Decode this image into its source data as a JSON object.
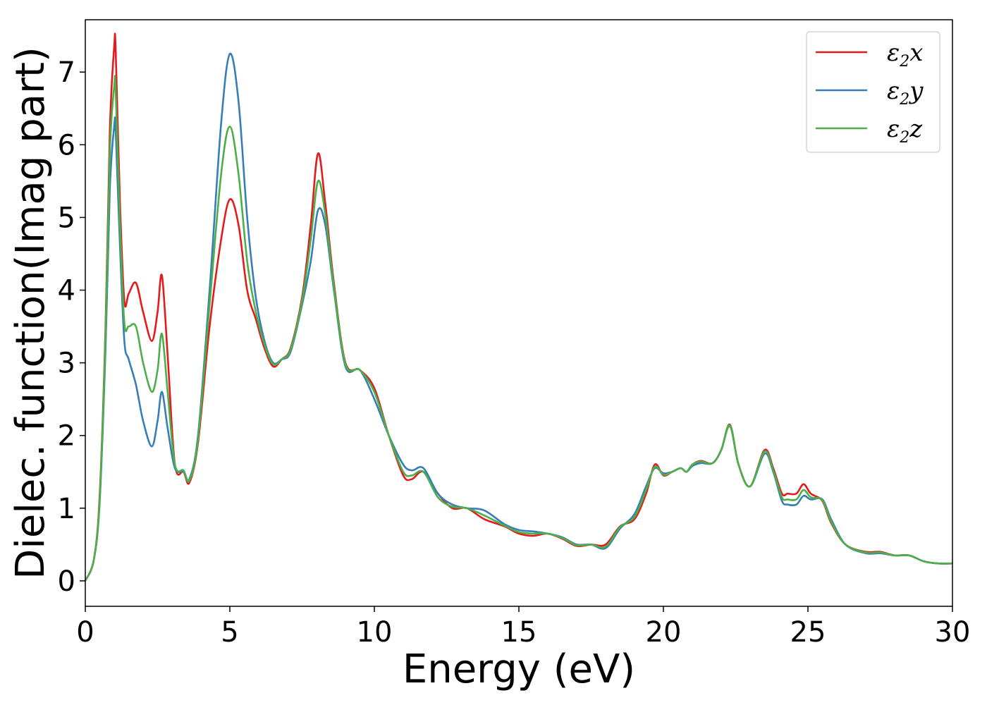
{
  "chart_data": {
    "type": "line",
    "xlabel": "Energy (eV)",
    "ylabel": "Dielec. function(Imag part)",
    "xlim": [
      0,
      30
    ],
    "ylim": [
      -0.35,
      7.72
    ],
    "xticks": [
      "0",
      "5",
      "10",
      "15",
      "20",
      "25",
      "30"
    ],
    "yticks": [
      "0",
      "1",
      "2",
      "3",
      "4",
      "5",
      "6",
      "7"
    ],
    "grid": false,
    "legend_position": "top-right",
    "series": [
      {
        "name": "ε2x",
        "legend": {
          "base": "ε",
          "sub": "2",
          "tail": "x"
        },
        "color": "#e41a1c",
        "x": [
          0,
          0.3,
          0.5,
          0.7,
          0.85,
          1.0,
          1.05,
          1.2,
          1.35,
          1.5,
          1.75,
          2.0,
          2.3,
          2.5,
          2.65,
          2.85,
          3.1,
          3.4,
          3.6,
          3.9,
          4.3,
          4.7,
          5.0,
          5.3,
          5.6,
          5.9,
          6.2,
          6.5,
          6.8,
          7.1,
          7.5,
          7.8,
          8.05,
          8.3,
          8.6,
          9.0,
          9.5,
          10.0,
          10.5,
          11.0,
          11.3,
          11.7,
          12.2,
          12.7,
          13.2,
          13.8,
          14.5,
          15.0,
          15.5,
          16.0,
          16.5,
          17.0,
          17.5,
          18.0,
          18.5,
          19.0,
          19.4,
          19.7,
          20.0,
          20.3,
          20.6,
          20.8,
          21.0,
          21.3,
          21.7,
          22.0,
          22.3,
          22.6,
          23.0,
          23.5,
          23.8,
          24.1,
          24.3,
          24.6,
          24.85,
          25.1,
          25.5,
          25.8,
          26.3,
          27.0,
          27.5,
          28.0,
          28.5,
          29.0,
          29.5,
          30.0
        ],
        "y": [
          0.0,
          0.3,
          1.2,
          3.5,
          6.2,
          7.35,
          7.3,
          5.2,
          3.85,
          3.95,
          4.1,
          3.7,
          3.3,
          3.7,
          4.2,
          3.1,
          1.6,
          1.5,
          1.35,
          1.9,
          3.5,
          4.7,
          5.25,
          4.9,
          4.0,
          3.6,
          3.2,
          2.95,
          3.05,
          3.2,
          3.9,
          4.9,
          5.88,
          5.2,
          4.1,
          3.0,
          2.9,
          2.65,
          2.0,
          1.45,
          1.4,
          1.5,
          1.2,
          1.0,
          1.0,
          0.85,
          0.75,
          0.65,
          0.62,
          0.65,
          0.58,
          0.48,
          0.5,
          0.5,
          0.75,
          0.85,
          1.2,
          1.6,
          1.45,
          1.5,
          1.55,
          1.5,
          1.6,
          1.65,
          1.62,
          1.8,
          2.15,
          1.6,
          1.3,
          1.8,
          1.55,
          1.2,
          1.2,
          1.2,
          1.33,
          1.2,
          1.1,
          0.8,
          0.5,
          0.4,
          0.4,
          0.35,
          0.35,
          0.27,
          0.24,
          0.24
        ]
      },
      {
        "name": "ε2y",
        "legend": {
          "base": "ε",
          "sub": "2",
          "tail": "y"
        },
        "color": "#377eb8",
        "x": [
          0,
          0.3,
          0.5,
          0.7,
          0.85,
          1.0,
          1.05,
          1.2,
          1.35,
          1.5,
          1.75,
          2.0,
          2.3,
          2.5,
          2.65,
          2.85,
          3.1,
          3.4,
          3.6,
          3.9,
          4.3,
          4.7,
          5.0,
          5.3,
          5.6,
          5.9,
          6.2,
          6.5,
          6.8,
          7.1,
          7.5,
          7.8,
          8.05,
          8.3,
          8.6,
          9.0,
          9.5,
          10.0,
          10.5,
          11.0,
          11.3,
          11.7,
          12.2,
          12.7,
          13.2,
          13.8,
          14.5,
          15.0,
          15.5,
          16.0,
          16.5,
          17.0,
          17.5,
          18.0,
          18.5,
          19.0,
          19.4,
          19.7,
          20.0,
          20.3,
          20.6,
          20.8,
          21.0,
          21.3,
          21.7,
          22.0,
          22.3,
          22.6,
          23.0,
          23.5,
          23.8,
          24.1,
          24.3,
          24.6,
          24.85,
          25.1,
          25.5,
          25.8,
          26.3,
          27.0,
          27.5,
          28.0,
          28.5,
          29.0,
          29.5,
          30.0
        ],
        "y": [
          0.0,
          0.3,
          1.1,
          3.2,
          5.4,
          6.25,
          6.2,
          4.6,
          3.3,
          3.05,
          2.7,
          2.2,
          1.85,
          2.2,
          2.6,
          2.1,
          1.55,
          1.5,
          1.4,
          2.0,
          4.0,
          6.3,
          7.25,
          6.6,
          5.0,
          3.9,
          3.3,
          3.0,
          3.05,
          3.15,
          3.8,
          4.4,
          5.1,
          4.9,
          4.0,
          2.95,
          2.9,
          2.5,
          2.0,
          1.6,
          1.52,
          1.55,
          1.2,
          1.05,
          1.0,
          0.97,
          0.78,
          0.7,
          0.68,
          0.65,
          0.6,
          0.5,
          0.5,
          0.45,
          0.72,
          0.92,
          1.3,
          1.55,
          1.48,
          1.5,
          1.55,
          1.5,
          1.58,
          1.62,
          1.62,
          1.8,
          2.13,
          1.6,
          1.3,
          1.75,
          1.5,
          1.1,
          1.05,
          1.05,
          1.17,
          1.12,
          1.12,
          0.85,
          0.5,
          0.38,
          0.38,
          0.35,
          0.35,
          0.27,
          0.24,
          0.24
        ]
      },
      {
        "name": "ε2z",
        "legend": {
          "base": "ε",
          "sub": "2",
          "tail": "z"
        },
        "color": "#4daf4a",
        "x": [
          0,
          0.3,
          0.5,
          0.7,
          0.85,
          1.0,
          1.05,
          1.2,
          1.35,
          1.5,
          1.75,
          2.0,
          2.3,
          2.5,
          2.65,
          2.85,
          3.1,
          3.4,
          3.6,
          3.9,
          4.3,
          4.7,
          5.0,
          5.3,
          5.6,
          5.9,
          6.2,
          6.5,
          6.8,
          7.1,
          7.5,
          7.8,
          8.05,
          8.3,
          8.6,
          9.0,
          9.5,
          10.0,
          10.5,
          11.0,
          11.3,
          11.7,
          12.2,
          12.7,
          13.2,
          13.8,
          14.5,
          15.0,
          15.5,
          16.0,
          16.5,
          17.0,
          17.5,
          18.0,
          18.5,
          19.0,
          19.4,
          19.7,
          20.0,
          20.3,
          20.6,
          20.8,
          21.0,
          21.3,
          21.7,
          22.0,
          22.3,
          22.6,
          23.0,
          23.5,
          23.8,
          24.1,
          24.3,
          24.6,
          24.85,
          25.1,
          25.5,
          25.8,
          26.3,
          27.0,
          27.5,
          28.0,
          28.5,
          29.0,
          29.5,
          30.0
        ],
        "y": [
          0.0,
          0.3,
          1.15,
          3.4,
          5.9,
          6.8,
          6.75,
          4.9,
          3.55,
          3.5,
          3.5,
          3.0,
          2.6,
          2.9,
          3.4,
          2.6,
          1.6,
          1.52,
          1.38,
          1.95,
          3.8,
          5.6,
          6.25,
          5.6,
          4.4,
          3.7,
          3.25,
          2.98,
          3.05,
          3.18,
          3.85,
          4.7,
          5.5,
          5.05,
          4.05,
          2.98,
          2.9,
          2.6,
          2.0,
          1.5,
          1.45,
          1.5,
          1.15,
          1.02,
          1.0,
          0.9,
          0.76,
          0.67,
          0.65,
          0.65,
          0.59,
          0.49,
          0.5,
          0.47,
          0.74,
          0.88,
          1.25,
          1.57,
          1.46,
          1.5,
          1.55,
          1.5,
          1.6,
          1.64,
          1.62,
          1.8,
          2.14,
          1.6,
          1.3,
          1.78,
          1.52,
          1.15,
          1.12,
          1.12,
          1.25,
          1.15,
          1.11,
          0.82,
          0.5,
          0.39,
          0.39,
          0.35,
          0.35,
          0.27,
          0.24,
          0.24
        ]
      }
    ]
  }
}
